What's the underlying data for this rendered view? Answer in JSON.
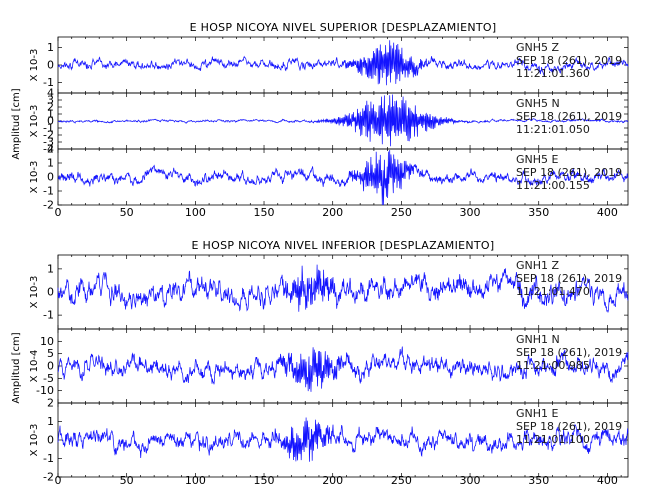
{
  "chart_data": [
    {
      "type": "line",
      "title": "E HOSP NICOYA NIVEL SUPERIOR [DESPLAZAMIENTO]",
      "ylabel": "Amplitud [cm]",
      "xlim": [
        0,
        415
      ],
      "x_ticks": [
        0,
        50,
        100,
        150,
        200,
        250,
        300,
        350,
        400
      ],
      "channels": [
        {
          "scale": "X 10-3",
          "ylim": [
            -1.6,
            1.6
          ],
          "y_ticks": [
            -1,
            0,
            1
          ],
          "station": "GNH5 Z",
          "date": "SEP 18 (261), 2019",
          "time": "11:21:01.360",
          "envelope": {
            "background": 0.45,
            "peak_amp": 1.15,
            "peak_center": 240,
            "peak_width": 14
          },
          "seed": 11
        },
        {
          "scale": "X 10-3",
          "ylim": [
            -4,
            4
          ],
          "y_ticks": [
            -4,
            -3,
            -2,
            -1,
            0,
            1,
            2,
            3,
            4
          ],
          "station": "GNH5 N",
          "date": "SEP 18 (261), 2019",
          "time": "11:21:01.050",
          "envelope": {
            "background": 0.3,
            "peak_amp": 3.4,
            "peak_center": 242,
            "peak_width": 20
          },
          "seed": 23
        },
        {
          "scale": "X 10-3",
          "ylim": [
            -2,
            2
          ],
          "y_ticks": [
            -2,
            -1,
            0,
            1,
            2
          ],
          "station": "GNH5 E",
          "date": "SEP 18 (261), 2019",
          "time": "11:21:00.155",
          "envelope": {
            "background": 0.7,
            "peak_amp": 1.6,
            "peak_center": 238,
            "peak_width": 12
          },
          "seed": 37
        }
      ]
    },
    {
      "type": "line",
      "title": "E HOSP NICOYA NIVEL INFERIOR [DESPLAZAMIENTO]",
      "ylabel": "Amplitud [cm]",
      "xlim": [
        0,
        415
      ],
      "x_ticks": [
        0,
        50,
        100,
        150,
        200,
        250,
        300,
        350,
        400
      ],
      "channels": [
        {
          "scale": "X 10-3",
          "ylim": [
            -1.6,
            1.6
          ],
          "y_ticks": [
            -1,
            0,
            1
          ],
          "station": "GNH1 Z",
          "date": "SEP 18 (261), 2019",
          "time": "11:21:01.470",
          "envelope": {
            "background": 0.85,
            "peak_amp": 0.7,
            "peak_center": 185,
            "peak_width": 12
          },
          "seed": 51
        },
        {
          "scale": "X 10-4",
          "ylim": [
            -15,
            15
          ],
          "y_ticks": [
            -10,
            -5,
            0,
            5,
            10
          ],
          "station": "GNH1 N",
          "date": "SEP 18 (261), 2019",
          "time": "11:21:00.985",
          "envelope": {
            "background": 6.5,
            "peak_amp": 7.5,
            "peak_center": 185,
            "peak_width": 14
          },
          "seed": 67
        },
        {
          "scale": "X 10-3",
          "ylim": [
            -2,
            2
          ],
          "y_ticks": [
            -2,
            -1,
            0,
            1,
            2
          ],
          "station": "GNH1 E",
          "date": "SEP 18 (261), 2019",
          "time": "11:21:01.100",
          "envelope": {
            "background": 0.85,
            "peak_amp": 0.9,
            "peak_center": 180,
            "peak_width": 12
          },
          "seed": 83
        }
      ]
    }
  ]
}
